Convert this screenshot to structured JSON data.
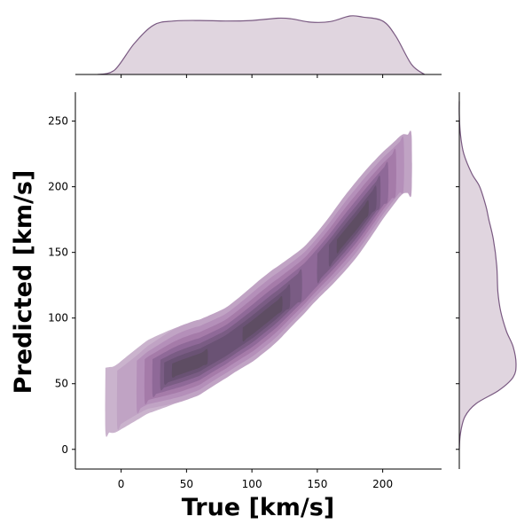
{
  "chart_data": {
    "type": "kde-jointplot",
    "xlabel": "True [km/s]",
    "ylabel": "Predicted [km/s]",
    "xlim": [
      -35,
      245
    ],
    "ylim": [
      -15,
      272
    ],
    "x_ticks": [
      0,
      50,
      100,
      150,
      200
    ],
    "y_ticks": [
      0,
      50,
      100,
      150,
      200,
      250
    ],
    "grid": false,
    "colors": {
      "marginal_fill": "#e0d5df",
      "marginal_line": "#7a5a82",
      "contour_levels": [
        "#cab3cd",
        "#c0a3c4",
        "#b48fb9",
        "#a57ba9",
        "#8f6998",
        "#7a5c84",
        "#6a5274",
        "#5e4d63"
      ]
    },
    "joint_ridge": {
      "x": [
        -5,
        20,
        40,
        60,
        80,
        100,
        120,
        140,
        160,
        180,
        200,
        215
      ],
      "y": [
        35,
        52,
        60,
        67,
        78,
        92,
        108,
        126,
        148,
        172,
        198,
        215
      ]
    },
    "joint_extent": {
      "x_min": -12,
      "x_max": 222,
      "y_min": 20,
      "y_max": 226
    },
    "density_peaks": [
      {
        "x": 50,
        "y": 62
      },
      {
        "x": 110,
        "y": 105
      },
      {
        "x": 178,
        "y": 178
      }
    ],
    "marginal_x": {
      "x": [
        -18,
        -5,
        10,
        25,
        40,
        60,
        80,
        100,
        120,
        130,
        145,
        160,
        175,
        185,
        200,
        210,
        222,
        232
      ],
      "density": [
        0.0,
        0.08,
        0.55,
        0.88,
        0.95,
        0.96,
        0.95,
        0.96,
        1.0,
        0.99,
        0.93,
        0.94,
        1.04,
        1.02,
        0.95,
        0.68,
        0.18,
        0.0
      ]
    },
    "marginal_y": {
      "y": [
        0,
        12,
        25,
        35,
        45,
        55,
        65,
        78,
        90,
        105,
        120,
        140,
        160,
        175,
        185,
        200,
        210,
        225,
        240,
        255,
        265
      ],
      "density": [
        0.0,
        0.02,
        0.1,
        0.3,
        0.7,
        0.95,
        1.0,
        0.95,
        0.83,
        0.73,
        0.68,
        0.66,
        0.6,
        0.52,
        0.47,
        0.36,
        0.22,
        0.08,
        0.02,
        0.0,
        0.0
      ]
    }
  }
}
